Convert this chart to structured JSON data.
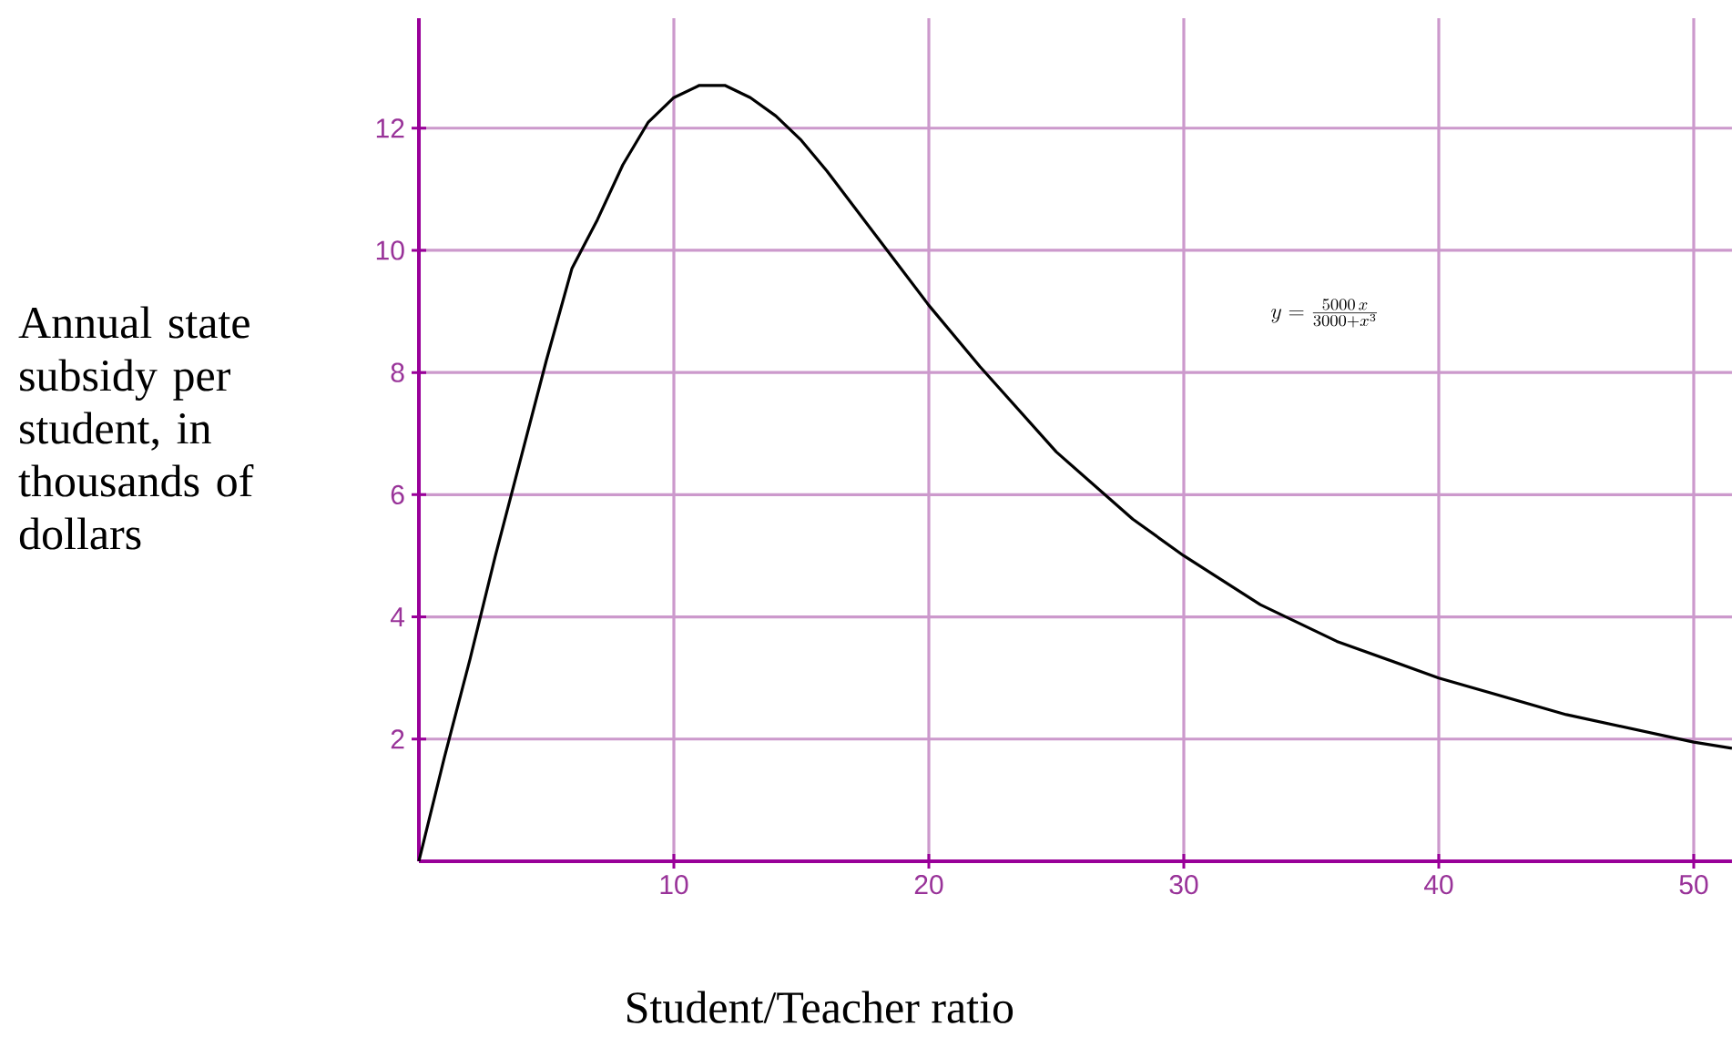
{
  "chart_data": {
    "type": "line",
    "xlabel": "Student/Teacher ratio",
    "ylabel": "Annual state subsidy per student, in thousands of dollars",
    "annotations": [
      "y=\\frac{5000\\,x}{3000+x^{3}}"
    ],
    "x": [
      0,
      1,
      2,
      3,
      4,
      5,
      6,
      7,
      8,
      9,
      10,
      11,
      12,
      13,
      14,
      15,
      16,
      18,
      20,
      22,
      25,
      28,
      30,
      33,
      36,
      40,
      45,
      50,
      51.5
    ],
    "series": [
      {
        "color": "#000000",
        "values": [
          0,
          1.7,
          3.3,
          5.0,
          6.6,
          8.2,
          9.7,
          10.5,
          11.4,
          12.1,
          12.5,
          12.7,
          12.7,
          12.5,
          12.2,
          11.8,
          11.3,
          10.2,
          9.1,
          8.1,
          6.7,
          5.6,
          5.0,
          4.2,
          3.6,
          3.0,
          2.4,
          1.95,
          1.85
        ]
      }
    ],
    "xlim": [
      0,
      51.5
    ],
    "ylim": [
      0,
      13.8
    ],
    "xticks": [
      10,
      20,
      30,
      40,
      50
    ],
    "yticks": [
      2,
      4,
      6,
      8,
      10,
      12
    ],
    "grid": true,
    "marker": "none",
    "line_style": "solid"
  }
}
